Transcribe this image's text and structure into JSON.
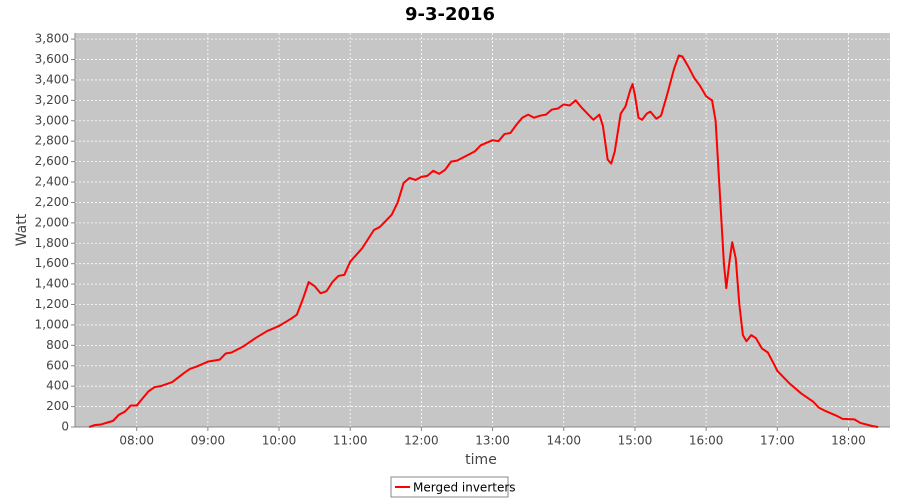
{
  "chart_data": {
    "type": "line",
    "title": "9-3-2016",
    "x_label": "time",
    "y_label": "Watt",
    "xlim": [
      428,
      1115
    ],
    "xticks": [
      {
        "value": 480,
        "label": "08:00"
      },
      {
        "value": 540,
        "label": "09:00"
      },
      {
        "value": 600,
        "label": "10:00"
      },
      {
        "value": 660,
        "label": "11:00"
      },
      {
        "value": 720,
        "label": "12:00"
      },
      {
        "value": 780,
        "label": "13:00"
      },
      {
        "value": 840,
        "label": "14:00"
      },
      {
        "value": 900,
        "label": "15:00"
      },
      {
        "value": 960,
        "label": "16:00"
      },
      {
        "value": 1020,
        "label": "17:00"
      },
      {
        "value": 1080,
        "label": "18:00"
      }
    ],
    "ylim": [
      0,
      3860
    ],
    "yticks": [
      0,
      200,
      400,
      600,
      800,
      {
        "value": 1000,
        "label": "1,000"
      },
      {
        "value": 1200,
        "label": "1,200"
      },
      {
        "value": 1400,
        "label": "1,400"
      },
      {
        "value": 1600,
        "label": "1,600"
      },
      {
        "value": 1800,
        "label": "1,800"
      },
      {
        "value": 2000,
        "label": "2,000"
      },
      {
        "value": 2200,
        "label": "2,200"
      },
      {
        "value": 2400,
        "label": "2,400"
      },
      {
        "value": 2600,
        "label": "2,600"
      },
      {
        "value": 2800,
        "label": "2,800"
      },
      {
        "value": 3000,
        "label": "3,000"
      },
      {
        "value": 3200,
        "label": "3,200"
      },
      {
        "value": 3400,
        "label": "3,400"
      },
      {
        "value": 3600,
        "label": "3,600"
      },
      {
        "value": 3800,
        "label": "3,800"
      }
    ],
    "grid": true,
    "legend": "bottom",
    "x": [
      440,
      445,
      450,
      460,
      465,
      470,
      475,
      480,
      485,
      490,
      495,
      500,
      510,
      520,
      525,
      530,
      540,
      550,
      555,
      560,
      570,
      580,
      590,
      600,
      610,
      615,
      620,
      625,
      630,
      635,
      640,
      645,
      650,
      655,
      660,
      670,
      680,
      685,
      695,
      700,
      705,
      710,
      715,
      720,
      725,
      730,
      735,
      740,
      745,
      750,
      760,
      765,
      770,
      780,
      785,
      790,
      795,
      800,
      805,
      810,
      815,
      820,
      825,
      830,
      835,
      840,
      845,
      850,
      855,
      860,
      865,
      870,
      873,
      877,
      880,
      883,
      888,
      892,
      896,
      898,
      900,
      903,
      906,
      910,
      913,
      918,
      922,
      927,
      933,
      937,
      940,
      945,
      950,
      955,
      960,
      965,
      968,
      972,
      975,
      977,
      980,
      982,
      985,
      988,
      991,
      994,
      998,
      1002,
      1007,
      1012,
      1017,
      1020,
      1030,
      1040,
      1045,
      1050,
      1055,
      1060,
      1070,
      1075,
      1085,
      1090,
      1100,
      1105
    ],
    "series": [
      {
        "name": "Merged inverters",
        "color": "#ff0000",
        "values": [
          0,
          20,
          25,
          60,
          120,
          150,
          210,
          210,
          280,
          350,
          390,
          400,
          440,
          530,
          570,
          590,
          640,
          660,
          720,
          730,
          790,
          870,
          940,
          990,
          1060,
          1100,
          1250,
          1420,
          1380,
          1310,
          1330,
          1420,
          1480,
          1490,
          1620,
          1750,
          1930,
          1960,
          2080,
          2200,
          2390,
          2440,
          2420,
          2450,
          2460,
          2510,
          2480,
          2520,
          2600,
          2610,
          2670,
          2700,
          2760,
          2810,
          2800,
          2870,
          2880,
          2960,
          3030,
          3060,
          3030,
          3050,
          3060,
          3110,
          3120,
          3160,
          3150,
          3200,
          3130,
          3070,
          3010,
          3060,
          2950,
          2620,
          2580,
          2700,
          3070,
          3140,
          3300,
          3360,
          3250,
          3030,
          3010,
          3070,
          3090,
          3020,
          3050,
          3250,
          3510,
          3640,
          3630,
          3530,
          3420,
          3340,
          3240,
          3200,
          3000,
          2200,
          1600,
          1360,
          1650,
          1810,
          1650,
          1200,
          900,
          840,
          900,
          870,
          770,
          730,
          620,
          550,
          430,
          330,
          290,
          250,
          190,
          160,
          110,
          80,
          75,
          40,
          10,
          0
        ]
      }
    ]
  }
}
